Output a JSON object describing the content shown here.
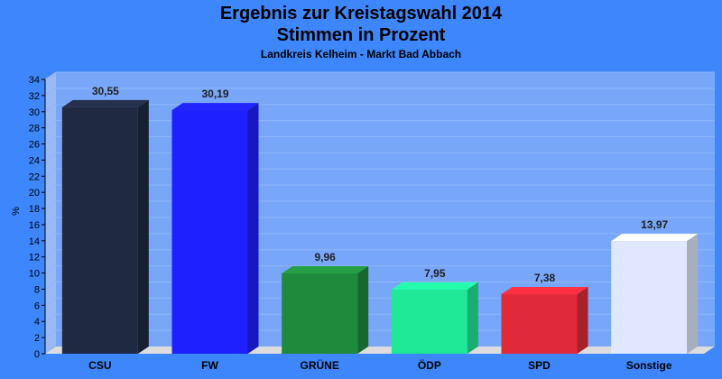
{
  "chart_data": {
    "type": "bar",
    "title": "Ergebnis zur Kreistagswahl 2014",
    "title_line2": "Stimmen in Prozent",
    "subtitle": "Landkreis Kelheim - Markt Bad Abbach",
    "xlabel": "",
    "ylabel": "%",
    "ylim": [
      0,
      34
    ],
    "ytick_step": 2,
    "grid": true,
    "categories": [
      "CSU",
      "FW",
      "GRÜNE",
      "ÖDP",
      "SPD",
      "Sonstige"
    ],
    "values": [
      30.55,
      30.19,
      9.96,
      7.95,
      7.38,
      13.97
    ],
    "value_labels": [
      "30,55",
      "30,19",
      "9,96",
      "7,95",
      "7,38",
      "13,97"
    ],
    "colors": [
      "#1f2a42",
      "#1e20ff",
      "#1f8a3b",
      "#1fe896",
      "#e02a3a",
      "#dfe8ff"
    ]
  },
  "colors": {
    "background": "#3d86fb",
    "plot_area": "#78a6f8",
    "gridline": "#8fb6fb",
    "floor": "#dcdcdc"
  }
}
